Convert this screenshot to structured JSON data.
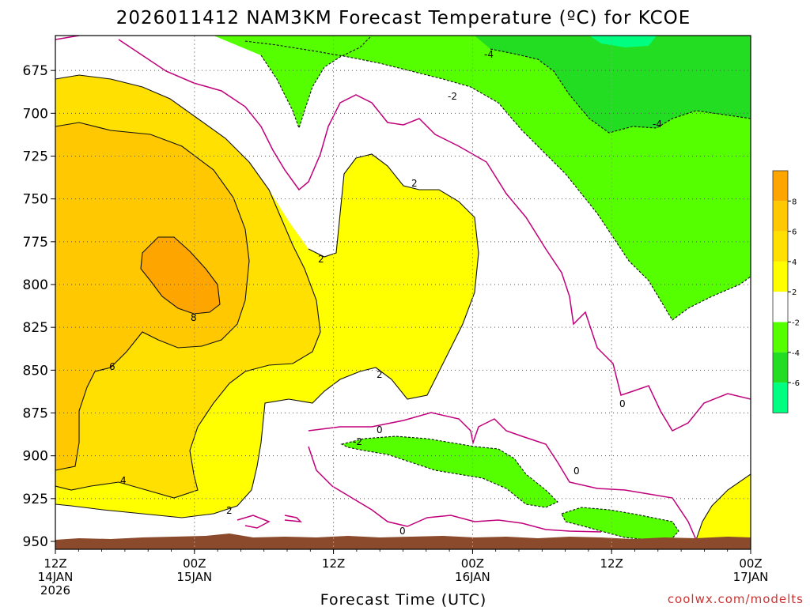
{
  "title": "2026011412 NAM3KM Forecast Temperature (ºC) for KCOE",
  "xlabel": "Forecast Time (UTC)",
  "credit": "coolwx.com/modelts",
  "chart_data": {
    "type": "heatmap",
    "title": "2026011412 NAM3KM Forecast Temperature (ºC) for KCOE",
    "xlabel": "Forecast Time (UTC)",
    "ylabel": "",
    "y_axis_inverted": true,
    "ylim": [
      950,
      650
    ],
    "y_ticks": [
      "675",
      "700",
      "725",
      "750",
      "775",
      "800",
      "825",
      "850",
      "875",
      "900",
      "925",
      "950"
    ],
    "x_ticks": [
      {
        "line1": "12Z",
        "line2": "14JAN",
        "line3": "2026"
      },
      {
        "line1": "00Z",
        "line2": "15JAN",
        "line3": ""
      },
      {
        "line1": "12Z",
        "line2": "",
        "line3": ""
      },
      {
        "line1": "00Z",
        "line2": "16JAN",
        "line3": ""
      },
      {
        "line1": "12Z",
        "line2": "",
        "line3": ""
      },
      {
        "line1": "00Z",
        "line2": "17JAN",
        "line3": ""
      }
    ],
    "colorbar": {
      "labels": [
        "8",
        "6",
        "4",
        "2",
        "-2",
        "-4",
        "-6"
      ],
      "colors": [
        "#ffa500",
        "#ffc800",
        "#ffe000",
        "#ffff00",
        "#ffffff",
        "#55ff00",
        "#22dd22",
        "#00ff80"
      ]
    },
    "contour_labels": [
      "-4",
      "-2",
      "-4",
      "2",
      "2",
      "2",
      "8",
      "6",
      "4",
      "2",
      "0",
      "-2",
      "0",
      "0",
      "0"
    ],
    "ground_color": "#8b4a2b",
    "grid": true
  }
}
